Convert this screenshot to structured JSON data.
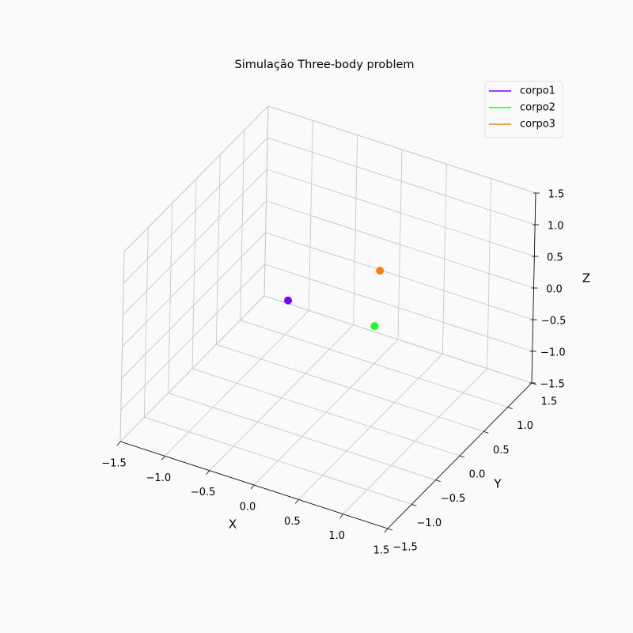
{
  "chart_data": {
    "type": "scatter3d",
    "title": "Simulação Three-body problem",
    "xlabel": "X",
    "ylabel": "Y",
    "zlabel": "Z",
    "xlim": [
      -1.5,
      1.5
    ],
    "ylim": [
      -1.5,
      1.5
    ],
    "zlim": [
      -1.5,
      1.5
    ],
    "xticks": [
      {
        "value": -1.5,
        "label": "−1.5"
      },
      {
        "value": -1.0,
        "label": "−1.0"
      },
      {
        "value": -0.5,
        "label": "−0.5"
      },
      {
        "value": 0,
        "label": "0.0"
      },
      0.5,
      {
        "value": 1.0,
        "label": "1.0"
      },
      1.5
    ],
    "yticks": [
      {
        "value": -1.5,
        "label": "−1.5"
      },
      {
        "value": -1.0,
        "label": "−1.0"
      },
      {
        "value": -0.5,
        "label": "−0.5"
      },
      {
        "value": 0,
        "label": "0.0"
      },
      0.5,
      {
        "value": 1.0,
        "label": "1.0"
      },
      1.5
    ],
    "zticks": [
      {
        "value": -1.5,
        "label": "−1.5"
      },
      {
        "value": -1.0,
        "label": "−1.0"
      },
      {
        "value": -0.5,
        "label": "−0.5"
      },
      {
        "value": 0,
        "label": "0.0"
      },
      0.5,
      {
        "value": 1.0,
        "label": "1.0"
      },
      1.5
    ],
    "grid": true,
    "legend": "upper right",
    "series": [
      {
        "name": "corpo1",
        "color": "#7f00ff",
        "x": [
          -0.48
        ],
        "y": [
          0.06
        ],
        "z": [
          0
        ]
      },
      {
        "name": "corpo2",
        "color": "#19ff27",
        "x": [
          0.47
        ],
        "y": [
          0.1
        ],
        "z": [
          0
        ]
      },
      {
        "name": "corpo3",
        "color": "#ff7f0e",
        "x": [
          0.05
        ],
        "y": [
          0.99
        ],
        "z": [
          0
        ]
      }
    ]
  }
}
